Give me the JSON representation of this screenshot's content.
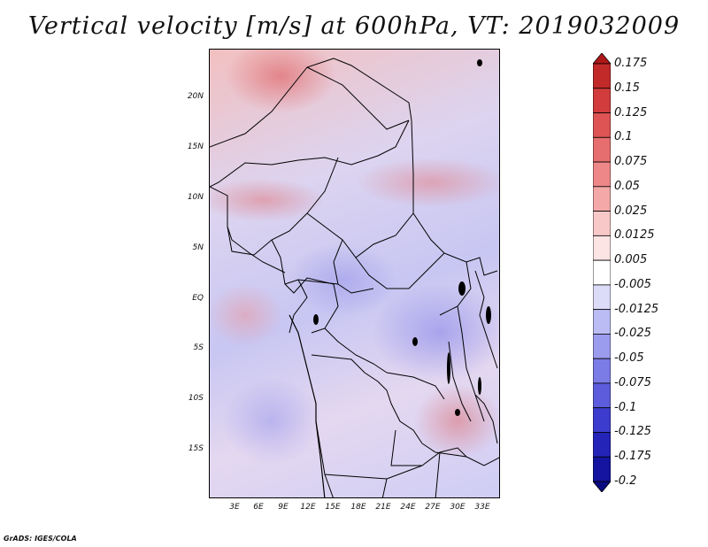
{
  "title": "Vertical velocity [m/s] at 600hPa, VT: 2019032009",
  "lat_labels": [
    "20N",
    "15N",
    "10N",
    "5N",
    "EQ",
    "5S",
    "10S",
    "15S"
  ],
  "lon_labels": [
    "3E",
    "6E",
    "9E",
    "12E",
    "15E",
    "18E",
    "21E",
    "24E",
    "27E",
    "30E",
    "33E"
  ],
  "colorbar": {
    "labels": [
      "0.175",
      "0.15",
      "0.125",
      "0.1",
      "0.075",
      "0.05",
      "0.025",
      "0.0125",
      "0.005",
      "-0.005",
      "-0.0125",
      "-0.025",
      "-0.05",
      "-0.075",
      "-0.1",
      "-0.125",
      "-0.175",
      "-0.2"
    ],
    "colors": [
      "#b01818",
      "#c22a2a",
      "#d23c3c",
      "#de5454",
      "#e66e6e",
      "#ee8888",
      "#f4a8a8",
      "#f8c8c8",
      "#fce4e4",
      "#ffffff",
      "#dcdcf8",
      "#bcbcf4",
      "#9c9cee",
      "#7c7ce6",
      "#5c5cdc",
      "#3c3cce",
      "#2424b8",
      "#1414a0",
      "#0a0a80"
    ]
  },
  "credit": "GrADS: IGES/COLA"
}
